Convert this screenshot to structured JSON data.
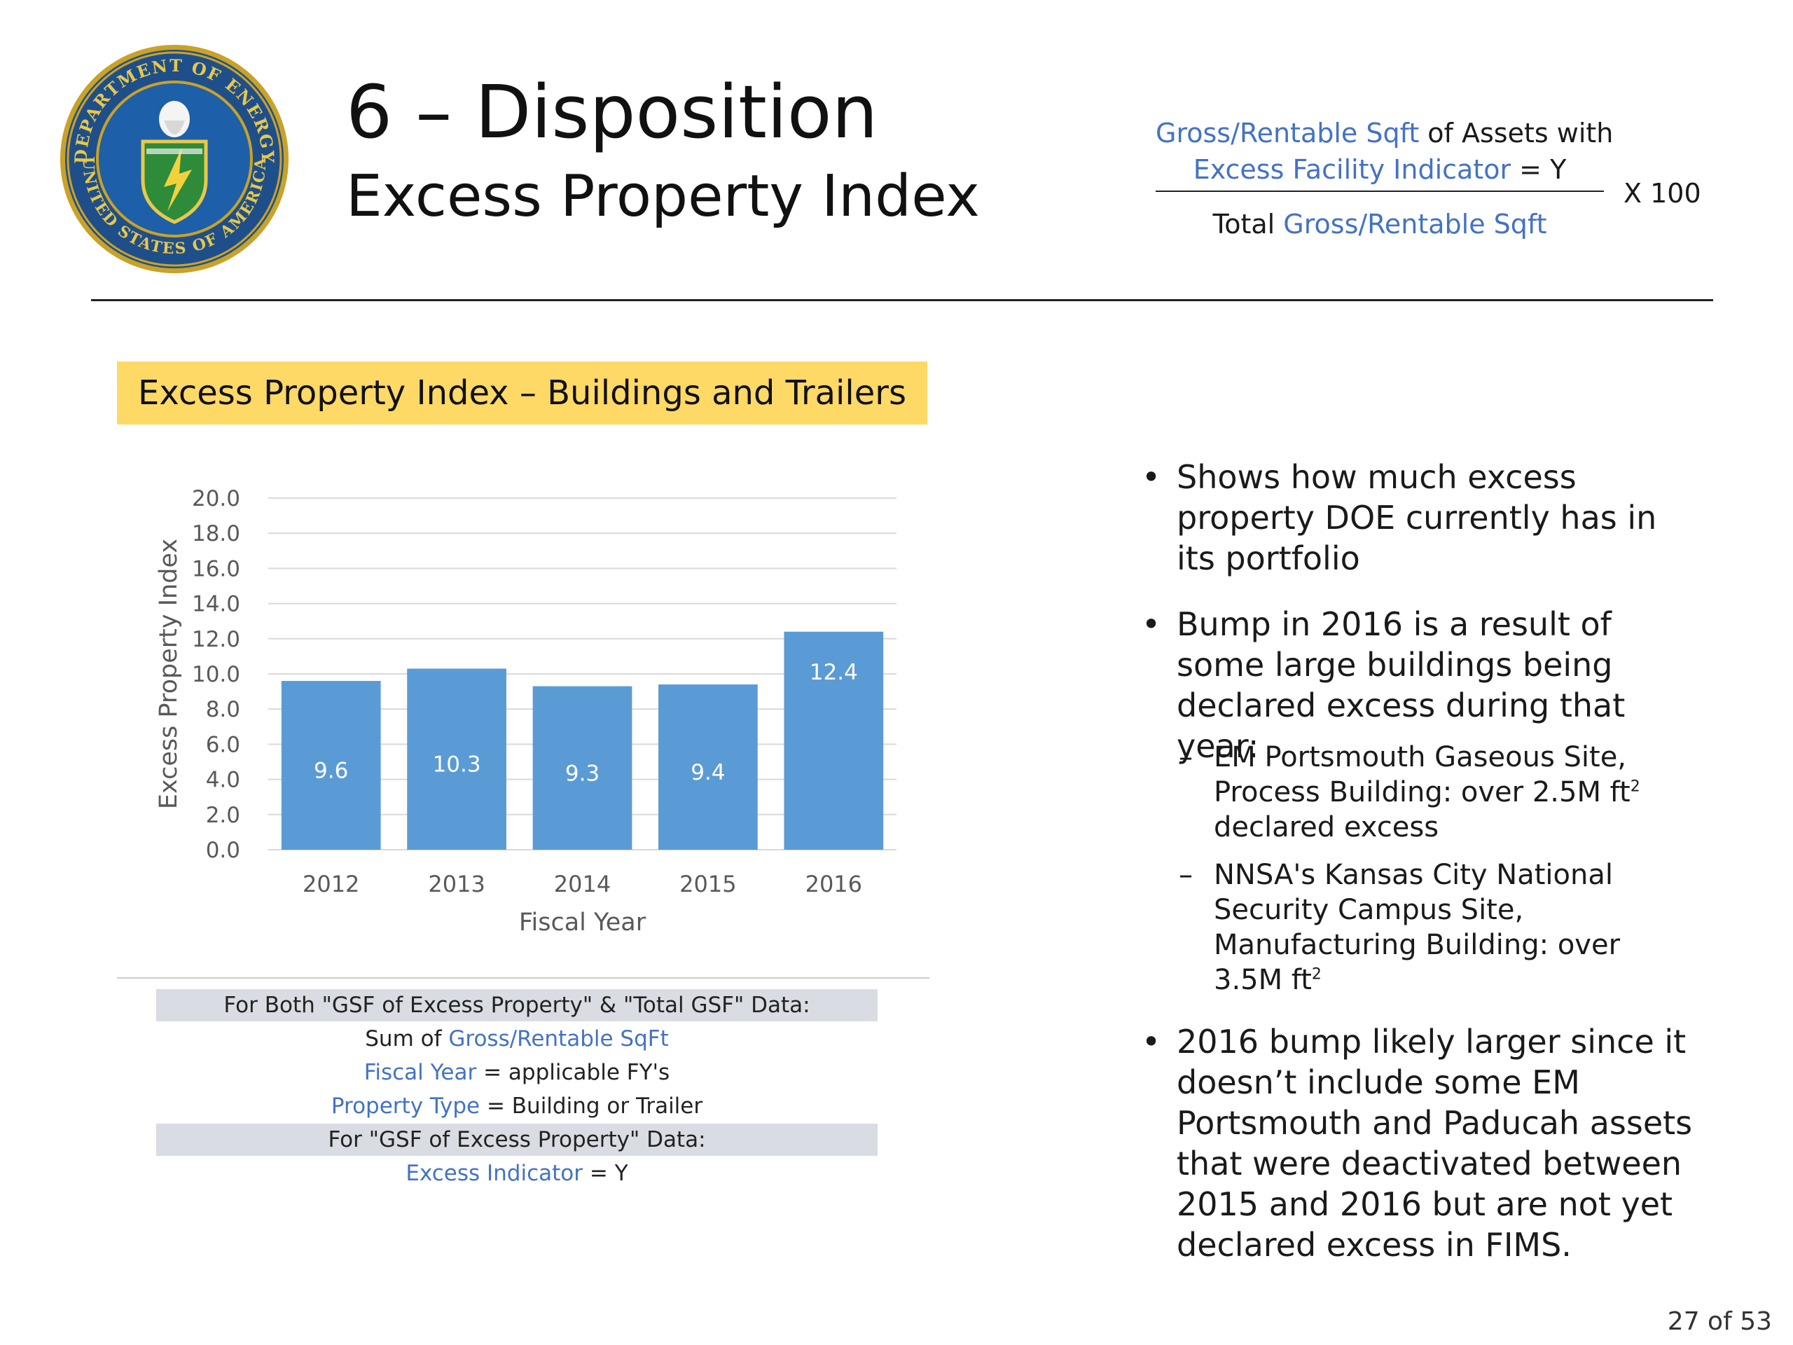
{
  "seal": {
    "text_top": "DEPARTMENT OF ENERGY",
    "text_bottom": "UNITED STATES OF AMERICA"
  },
  "title": {
    "main": "6 – Disposition",
    "sub": "Excess Property Index"
  },
  "formula": {
    "num_line1_blue": "Gross/Rentable Sqft",
    "num_line1_rest": " of Assets with",
    "num_line2_blue": "Excess Facility Indicator",
    "num_line2_rest": " = Y",
    "den_prefix": "Total ",
    "den_blue": "Gross/Rentable Sqft",
    "multiplier": "X  100"
  },
  "chart_header": "Excess Property Index – Buildings and Trailers",
  "chart_data": {
    "type": "bar",
    "categories": [
      "2012",
      "2013",
      "2014",
      "2015",
      "2016"
    ],
    "values": [
      9.6,
      10.3,
      9.3,
      9.4,
      12.4
    ],
    "data_labels": [
      "9.6",
      "10.3",
      "9.3",
      "9.4",
      "12.4"
    ],
    "xlabel": "Fiscal Year",
    "ylabel": "Excess Property Index",
    "ylim": [
      0,
      20
    ],
    "yticks": [
      "0.0",
      "2.0",
      "4.0",
      "6.0",
      "8.0",
      "10.0",
      "12.0",
      "14.0",
      "16.0",
      "18.0",
      "20.0"
    ],
    "grid": true,
    "bar_color": "#5b9bd5"
  },
  "filters": {
    "row1": "For Both \"GSF of Excess Property\" & \"Total GSF\" Data:",
    "row2_prefix": "Sum of ",
    "row2_blue": "Gross/Rentable SqFt",
    "row3_blue": "Fiscal Year",
    "row3_rest": " = applicable FY's",
    "row4_blue": "Property Type",
    "row4_rest": " = Building or Trailer",
    "row5": "For \"GSF of Excess Property\" Data:",
    "row6_blue": "Excess Indicator",
    "row6_rest": " = Y"
  },
  "bullets": {
    "b1": "Shows how much excess property DOE currently has in its portfolio",
    "b2": "Bump in 2016 is a result of some large buildings being declared excess during that year:",
    "s1_pre": "EM Portsmouth Gaseous Site, Process Building: over 2.5M ft",
    "s1_post": " declared excess",
    "s2_pre": "NNSA's Kansas City National Security Campus Site, Manufacturing Building: over 3.5M ft",
    "sup": "2",
    "b3": "2016 bump likely larger since it doesn’t include some EM Portsmouth and Paducah assets that were deactivated between 2015 and 2016 but are not yet declared excess in FIMS."
  },
  "page_number": "27 of 53",
  "colors": {
    "accent_blue": "#4472c4",
    "header_yellow": "#ffd966",
    "filter_gray": "#d9dce2"
  }
}
